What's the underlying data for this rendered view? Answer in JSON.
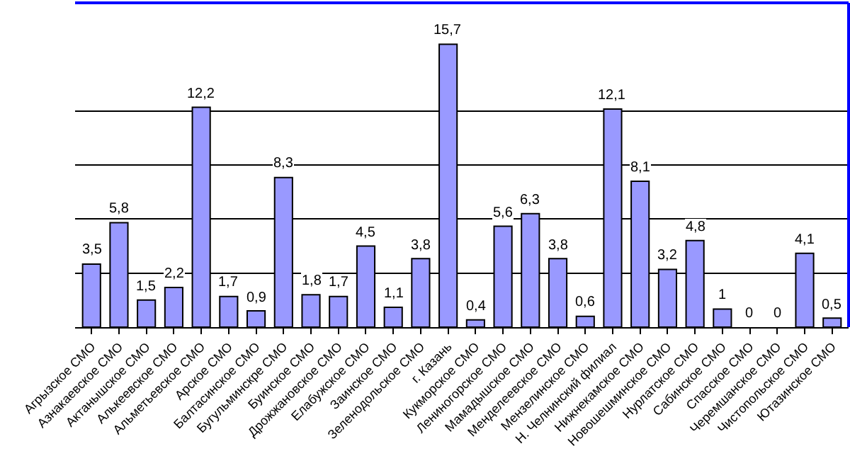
{
  "chart_data": {
    "type": "bar",
    "categories": [
      "Агрызское СМО",
      "Азнакаевское СМО",
      "Актанышское СМО",
      "Алькеевское СМО",
      "Альметьевское СМО",
      "Арское СМО",
      "Балтасинское СМО",
      "Бугульминскре СМО",
      "Буинское СМО",
      "Дрожжановское СМО",
      "Елабужское СМО",
      "Заинское СМО",
      "Зеленодольское СМО",
      "г. Казань",
      "Кукморское СМО",
      "Лениногорское СМО",
      "Мамадышское СМО",
      "Менделеевское СМО",
      "Мензелинское СМО",
      "Н. Челнинский филиал",
      "Нижнекамское СМО",
      "Новошешминское СМО",
      "Нурлатское СМО",
      "Сабинское СМО",
      "Спасское СМО",
      "Черемшанское СМО",
      "Чистопольское СМО",
      "Ютазинское СМО"
    ],
    "values": [
      3.5,
      5.8,
      1.5,
      2.2,
      12.2,
      1.7,
      0.9,
      8.3,
      1.8,
      1.7,
      4.5,
      1.1,
      3.8,
      15.7,
      0.4,
      5.6,
      6.3,
      3.8,
      0.6,
      12.1,
      8.1,
      3.2,
      4.8,
      1,
      0,
      0,
      4.1,
      0.5
    ],
    "value_labels": [
      "3,5",
      "5,8",
      "1,5",
      "2,2",
      "12,2",
      "1,7",
      "0,9",
      "8,3",
      "1,8",
      "1,7",
      "4,5",
      "1,1",
      "3,8",
      "15,7",
      "0,4",
      "5,6",
      "6,3",
      "3,8",
      "0,6",
      "12,1",
      "8,1",
      "3,2",
      "4,8",
      "1",
      "0",
      "0",
      "4,1",
      "0,5"
    ],
    "color": "#9999ff",
    "ylim": [
      0,
      18
    ],
    "yticks": [
      {
        "value": 3,
        "label": null
      },
      {
        "value": 6,
        "label": null
      },
      {
        "value": 9,
        "label": null
      },
      {
        "value": 12,
        "label": null
      }
    ],
    "grid": "y",
    "tick_labels": "x",
    "legend": false
  }
}
